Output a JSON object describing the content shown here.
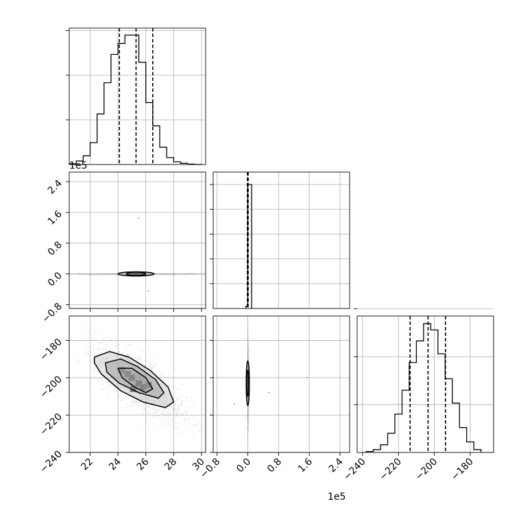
{
  "chart_data": {
    "type": "corner",
    "grid": true,
    "parameters": 3,
    "offsets": {
      "param2_y": "1e5",
      "param2_x": "1e5"
    },
    "panels": [
      {
        "id": "hist-1",
        "type": "histogram-step",
        "xlim": [
          20.5,
          30.3
        ],
        "bin_edges": [
          20.5,
          21.0,
          21.5,
          22.0,
          22.5,
          23.0,
          23.5,
          24.0,
          24.5,
          25.0,
          25.5,
          26.0,
          26.5,
          27.0,
          27.5,
          28.0,
          28.5,
          29.0,
          29.5,
          30.0
        ],
        "counts": [
          15,
          70,
          175,
          440,
          1020,
          1650,
          2220,
          2440,
          2610,
          2610,
          2060,
          1250,
          780,
          350,
          140,
          55,
          25,
          8,
          2
        ],
        "ylim": [
          0,
          2750
        ],
        "quantiles": [
          24.1,
          25.3,
          26.5
        ],
        "y_grid": [
          900,
          1800,
          2700
        ]
      },
      {
        "id": "scatter-2-1",
        "type": "scatter-contour",
        "xlim": [
          20.5,
          30.3
        ],
        "ylim": [
          -0.9,
          2.65
        ],
        "y_ticks": [
          "2.4",
          "1.6",
          "0.8",
          "0.0",
          "−0.8"
        ],
        "y_tick_values": [
          2.4,
          1.6,
          0.8,
          0.0,
          -0.8
        ],
        "x_grid": [
          22,
          24,
          26,
          28,
          30
        ],
        "blob": {
          "cx": 25.3,
          "cy": 0.0,
          "sx": 2.4,
          "sy": 0.01
        },
        "contours": [
          {
            "rx": 1.3,
            "ry": 0.055
          },
          {
            "rx": 0.7,
            "ry": 0.035
          }
        ],
        "outliers": [
          [
            25.5,
            1.45
          ],
          [
            26.2,
            -0.45
          ]
        ]
      },
      {
        "id": "hist-2",
        "type": "histogram-step",
        "xlim": [
          -0.9,
          2.65
        ],
        "bin_edges": [
          -0.05,
          0.0,
          0.1
        ],
        "counts": [
          250,
          15000
        ],
        "ylim": [
          0,
          16500
        ],
        "quantiles": [
          -0.01,
          0.0,
          0.01
        ],
        "y_grid": [
          3000,
          6000,
          9000,
          12000,
          15000
        ]
      },
      {
        "id": "scatter-3-1",
        "type": "scatter-contour",
        "xlim": [
          20.5,
          30.3
        ],
        "ylim": [
          -240,
          -167
        ],
        "x_ticks": [
          "22",
          "24",
          "26",
          "28",
          "30"
        ],
        "x_tick_values": [
          22,
          24,
          26,
          28,
          30
        ],
        "y_ticks": [
          "−180",
          "−200",
          "−220",
          "−240"
        ],
        "y_tick_values": [
          -180,
          -200,
          -220,
          -240
        ],
        "blob": {
          "cx": 25.5,
          "cy": -203,
          "sx": 1.6,
          "sy": 10,
          "rho": -0.72
        },
        "contours": [
          {
            "pts": [
              [
                22.3,
                -189
              ],
              [
                23.4,
                -186
              ],
              [
                24.8,
                -189
              ],
              [
                26.3,
                -196
              ],
              [
                27.6,
                -205
              ],
              [
                28.0,
                -213
              ],
              [
                27.4,
                -216
              ],
              [
                25.8,
                -213
              ],
              [
                24.2,
                -207
              ],
              [
                22.8,
                -198
              ],
              [
                22.3,
                -192
              ]
            ]
          },
          {
            "pts": [
              [
                23.1,
                -192
              ],
              [
                24.2,
                -190
              ],
              [
                25.4,
                -194
              ],
              [
                26.7,
                -201
              ],
              [
                27.3,
                -208
              ],
              [
                26.9,
                -211
              ],
              [
                25.5,
                -208
              ],
              [
                24.1,
                -203
              ],
              [
                23.2,
                -197
              ]
            ]
          },
          {
            "pts": [
              [
                24.0,
                -195
              ],
              [
                25.0,
                -195
              ],
              [
                26.0,
                -200
              ],
              [
                26.5,
                -206
              ],
              [
                26.0,
                -208
              ],
              [
                25.2,
                -205
              ],
              [
                24.3,
                -200
              ]
            ]
          }
        ],
        "dense_bins": [
          [
            25.0,
            -200,
            0.85
          ],
          [
            25.5,
            -203,
            1.0
          ],
          [
            25.8,
            -205,
            0.95
          ],
          [
            24.7,
            -198,
            0.7
          ],
          [
            26.2,
            -204,
            0.7
          ],
          [
            24.3,
            -196,
            0.5
          ],
          [
            25.1,
            -206,
            0.6
          ]
        ]
      },
      {
        "id": "scatter-3-2",
        "type": "scatter-contour",
        "xlim": [
          -0.9,
          2.65
        ],
        "ylim": [
          -240,
          -167
        ],
        "x_ticks": [
          "−0.8",
          "0.0",
          "0.8",
          "1.6",
          "2.4"
        ],
        "x_tick_values": [
          -0.8,
          0.0,
          0.8,
          1.6,
          2.4
        ],
        "blob": {
          "cx": 0.0,
          "cy": -203,
          "sx": 0.012,
          "sy": 10
        },
        "contours": [
          {
            "rx": 0.04,
            "ry": 12
          },
          {
            "rx": 0.025,
            "ry": 7
          }
        ],
        "outliers": [
          [
            0.55,
            -208
          ],
          [
            1.55,
            -200
          ],
          [
            -0.35,
            -214
          ]
        ]
      },
      {
        "id": "hist-3",
        "type": "histogram-step",
        "xlim": [
          -243,
          -167
        ],
        "x_ticks": [
          "−240",
          "−220",
          "−200",
          "−180"
        ],
        "x_tick_values": [
          -240,
          -220,
          -200,
          -180
        ],
        "bin_edges": [
          -238,
          -234,
          -230,
          -226,
          -222,
          -218,
          -214,
          -210,
          -206,
          -202,
          -198,
          -194,
          -190,
          -186,
          -182,
          -178,
          -174
        ],
        "counts": [
          20,
          60,
          160,
          400,
          800,
          1300,
          1880,
          2330,
          2690,
          2560,
          2060,
          1540,
          1030,
          520,
          220,
          60
        ],
        "ylim": [
          0,
          2850
        ],
        "quantiles": [
          -213.5,
          -203.5,
          -193.8
        ],
        "y_grid": [
          1000,
          2000,
          3000
        ]
      }
    ]
  }
}
